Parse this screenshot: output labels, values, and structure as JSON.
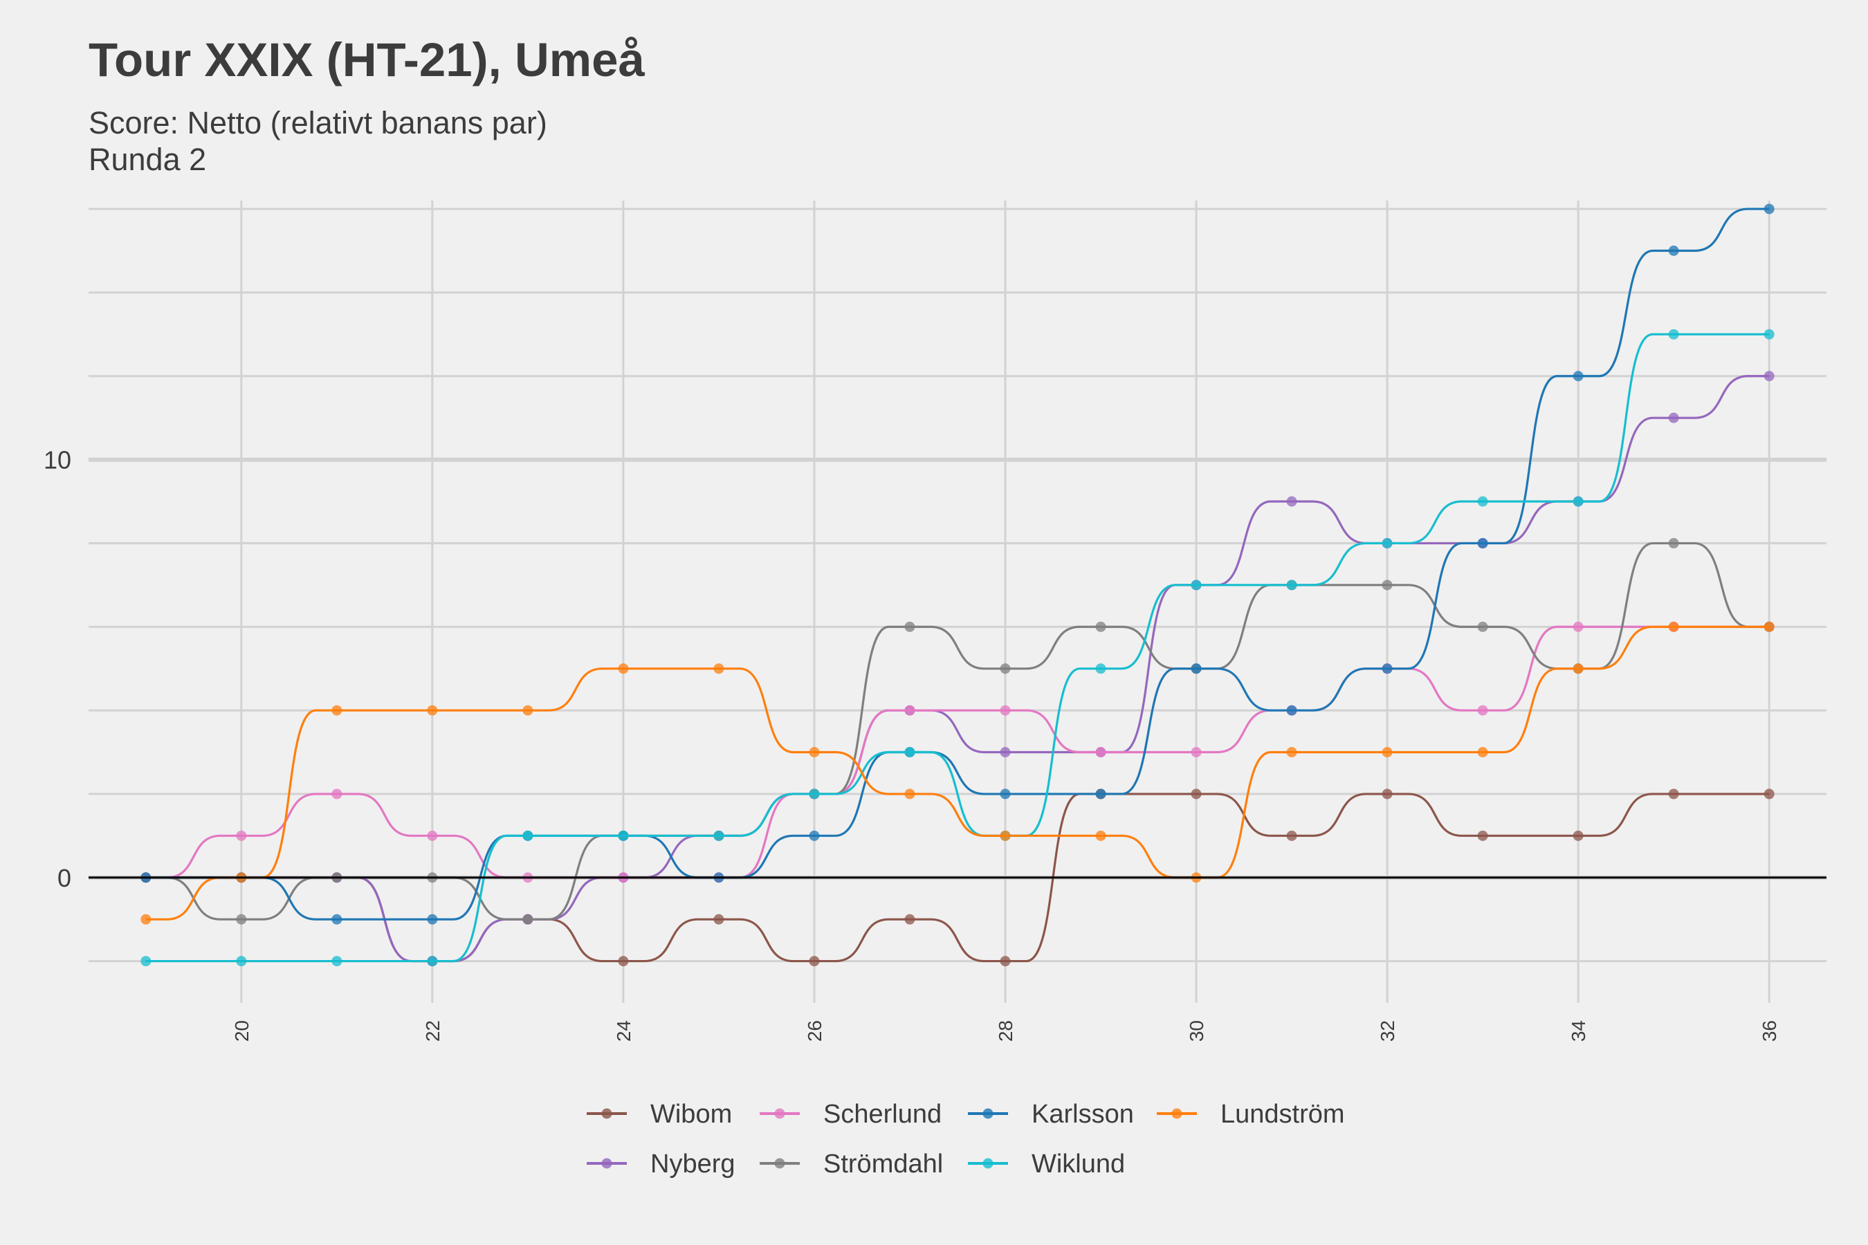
{
  "chart_data": {
    "type": "line",
    "title": "Tour XXIX (HT-21), Umeå",
    "subtitle": "Score: Netto (relativt banans par)",
    "subtitle2": "Runda 2",
    "xlabel": "",
    "ylabel": "",
    "x": [
      19,
      20,
      21,
      22,
      23,
      24,
      25,
      26,
      27,
      28,
      29,
      30,
      31,
      32,
      33,
      34,
      35,
      36
    ],
    "x_ticks": [
      "20",
      "22",
      "24",
      "26",
      "28",
      "30",
      "32",
      "34",
      "36"
    ],
    "y_ticks": [
      "0",
      "10"
    ],
    "xlim": [
      18.4,
      36.6
    ],
    "ylim": [
      -3,
      16.2
    ],
    "grid": true,
    "legend_position": "bottom",
    "series": [
      {
        "name": "Wibom",
        "color": "#8c564b",
        "values": [
          0,
          0,
          0,
          -2,
          -1,
          -2,
          -1,
          -2,
          -1,
          -2,
          2,
          2,
          1,
          2,
          1,
          1,
          2,
          2
        ]
      },
      {
        "name": "Nyberg",
        "color": "#9467bd",
        "values": [
          0,
          0,
          0,
          -2,
          -1,
          0,
          1,
          2,
          4,
          3,
          3,
          7,
          9,
          8,
          8,
          9,
          11,
          12
        ]
      },
      {
        "name": "Scherlund",
        "color": "#e377c2",
        "values": [
          0,
          1,
          2,
          1,
          0,
          0,
          0,
          2,
          4,
          4,
          3,
          3,
          4,
          5,
          4,
          6,
          6,
          6
        ]
      },
      {
        "name": "Strömdahl",
        "color": "#7f7f7f",
        "values": [
          0,
          -1,
          0,
          0,
          -1,
          1,
          1,
          2,
          6,
          5,
          6,
          5,
          7,
          7,
          6,
          5,
          8,
          6
        ]
      },
      {
        "name": "Karlsson",
        "color": "#1f77b4",
        "values": [
          0,
          0,
          -1,
          -1,
          1,
          1,
          0,
          1,
          3,
          2,
          2,
          5,
          4,
          5,
          8,
          12,
          15,
          16
        ]
      },
      {
        "name": "Wiklund",
        "color": "#17becf",
        "values": [
          -2,
          -2,
          -2,
          -2,
          1,
          1,
          1,
          2,
          3,
          1,
          5,
          7,
          7,
          8,
          9,
          9,
          13,
          13
        ]
      },
      {
        "name": "Lundström",
        "color": "#ff7f0e",
        "values": [
          -1,
          0,
          4,
          4,
          4,
          5,
          5,
          3,
          2,
          1,
          1,
          0,
          3,
          3,
          3,
          5,
          6,
          6
        ]
      }
    ]
  }
}
